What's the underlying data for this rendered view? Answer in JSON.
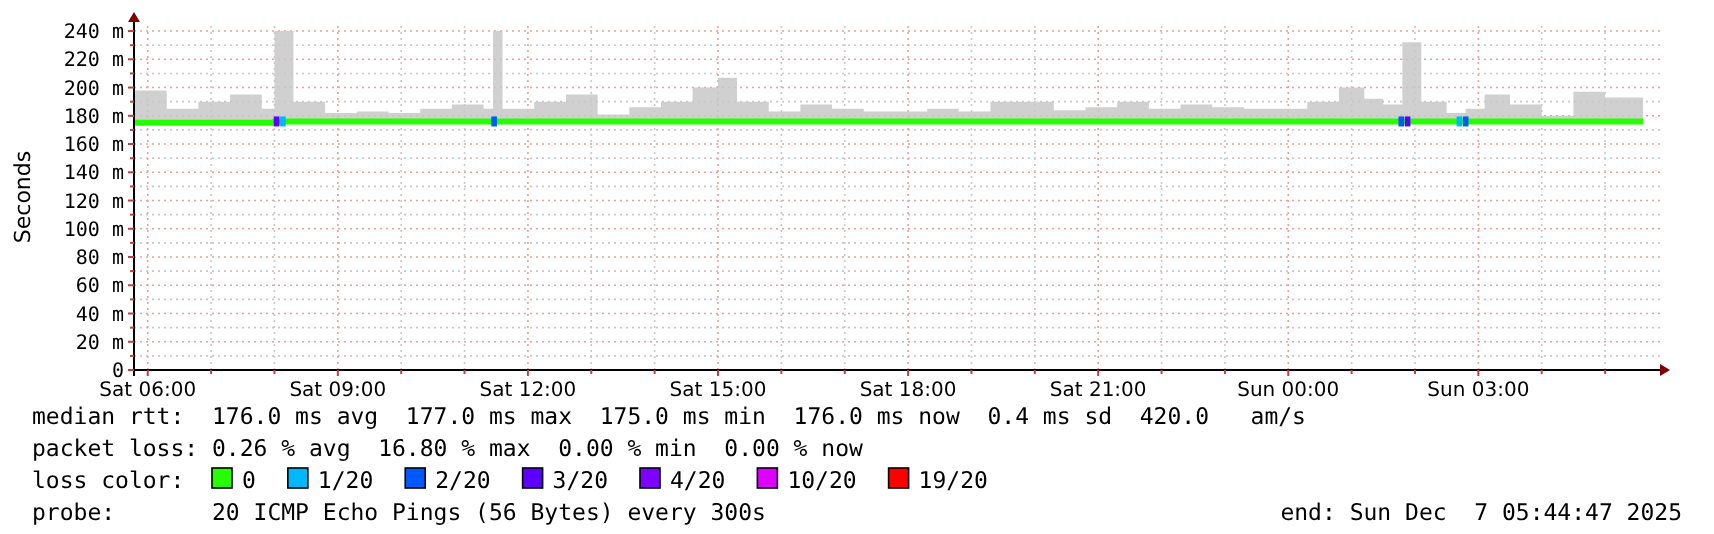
{
  "chart_data": {
    "type": "line",
    "ylabel": "Seconds",
    "legend_title": "loss color:",
    "legend": "bottom",
    "grid": true,
    "annotations": [
      "median rtt:  176.0 ms avg  177.0 ms max  175.0 ms min  176.0 ms now  0.4 ms sd  420.0   am/s",
      "packet loss: 0.26 % avg  16.80 % max  0.00 % min  0.00 % now",
      "probe:       20 ICMP Echo Pings (56 Bytes) every 300s",
      "end: Sun Dec  7 05:44:47 2025"
    ],
    "xlim": [
      "2025-12-06T05:47",
      "2025-12-07T05:52"
    ],
    "xticks": [
      {
        "value": "2025-12-06T06:00",
        "label": "Sat 06:00"
      },
      {
        "value": "2025-12-06T07:00",
        "label": null
      },
      {
        "value": "2025-12-06T08:00",
        "label": null
      },
      {
        "value": "2025-12-06T09:00",
        "label": "Sat 09:00"
      },
      {
        "value": "2025-12-06T10:00",
        "label": null
      },
      {
        "value": "2025-12-06T11:00",
        "label": null
      },
      {
        "value": "2025-12-06T12:00",
        "label": "Sat 12:00"
      },
      {
        "value": "2025-12-06T13:00",
        "label": null
      },
      {
        "value": "2025-12-06T14:00",
        "label": null
      },
      {
        "value": "2025-12-06T15:00",
        "label": "Sat 15:00"
      },
      {
        "value": "2025-12-06T16:00",
        "label": null
      },
      {
        "value": "2025-12-06T17:00",
        "label": null
      },
      {
        "value": "2025-12-06T18:00",
        "label": "Sat 18:00"
      },
      {
        "value": "2025-12-06T19:00",
        "label": null
      },
      {
        "value": "2025-12-06T20:00",
        "label": null
      },
      {
        "value": "2025-12-06T21:00",
        "label": "Sat 21:00"
      },
      {
        "value": "2025-12-06T22:00",
        "label": null
      },
      {
        "value": "2025-12-06T23:00",
        "label": null
      },
      {
        "value": "2025-12-07T00:00",
        "label": "Sun 00:00"
      },
      {
        "value": "2025-12-07T01:00",
        "label": null
      },
      {
        "value": "2025-12-07T02:00",
        "label": null
      },
      {
        "value": "2025-12-07T03:00",
        "label": "Sun 03:00"
      },
      {
        "value": "2025-12-07T04:00",
        "label": null
      },
      {
        "value": "2025-12-07T05:00",
        "label": null
      }
    ],
    "ylim": [
      0,
      245
    ],
    "yticks": [
      0,
      {
        "value": 10,
        "label": null
      },
      {
        "value": 20,
        "label": "20 m"
      },
      {
        "value": 30,
        "label": null
      },
      {
        "value": 40,
        "label": "40 m"
      },
      {
        "value": 50,
        "label": null
      },
      {
        "value": 60,
        "label": "60 m"
      },
      {
        "value": 70,
        "label": null
      },
      {
        "value": 80,
        "label": "80 m"
      },
      {
        "value": 90,
        "label": null
      },
      {
        "value": 100,
        "label": "100 m"
      },
      {
        "value": 110,
        "label": null
      },
      {
        "value": 120,
        "label": "120 m"
      },
      {
        "value": 130,
        "label": null
      },
      {
        "value": 140,
        "label": "140 m"
      },
      {
        "value": 150,
        "label": null
      },
      {
        "value": 160,
        "label": "160 m"
      },
      {
        "value": 170,
        "label": null
      },
      {
        "value": 180,
        "label": "180 m"
      },
      {
        "value": 190,
        "label": null
      },
      {
        "value": 200,
        "label": "200 m"
      },
      {
        "value": 210,
        "label": null
      },
      {
        "value": 220,
        "label": "220 m"
      },
      {
        "value": 230,
        "label": null
      },
      {
        "value": 240,
        "label": "240 m"
      }
    ],
    "series": [
      {
        "name": "0",
        "color": "#26ff00",
        "marker": "none",
        "x": [
          "2025-12-06T05:48",
          "2025-12-06T06:18",
          "2025-12-06T06:48",
          "2025-12-06T07:18",
          "2025-12-06T07:48",
          "2025-12-06T08:00",
          "2025-12-06T08:06",
          "2025-12-06T08:18",
          "2025-12-06T08:48",
          "2025-12-06T09:18",
          "2025-12-06T09:48",
          "2025-12-06T10:18",
          "2025-12-06T10:48",
          "2025-12-06T11:18",
          "2025-12-06T11:27",
          "2025-12-06T11:36",
          "2025-12-06T12:06",
          "2025-12-06T12:36",
          "2025-12-06T13:06",
          "2025-12-06T13:36",
          "2025-12-06T14:06",
          "2025-12-06T14:36",
          "2025-12-06T15:00",
          "2025-12-06T15:18",
          "2025-12-06T15:48",
          "2025-12-06T16:18",
          "2025-12-06T16:48",
          "2025-12-06T17:18",
          "2025-12-06T17:48",
          "2025-12-06T18:18",
          "2025-12-06T18:48",
          "2025-12-06T19:18",
          "2025-12-06T19:48",
          "2025-12-06T20:18",
          "2025-12-06T20:48",
          "2025-12-06T21:18",
          "2025-12-06T21:48",
          "2025-12-06T22:18",
          "2025-12-06T22:48",
          "2025-12-06T23:18",
          "2025-12-06T23:48",
          "2025-12-07T00:18",
          "2025-12-07T00:48",
          "2025-12-07T01:12",
          "2025-12-07T01:30",
          "2025-12-07T01:48",
          "2025-12-07T02:06",
          "2025-12-07T02:30",
          "2025-12-07T02:48",
          "2025-12-07T03:06",
          "2025-12-07T03:30",
          "2025-12-07T04:00",
          "2025-12-07T04:30",
          "2025-12-07T05:00",
          "2025-12-07T05:36"
        ],
        "values": [
          175,
          175,
          175,
          175,
          175,
          176,
          176,
          176,
          176,
          176,
          176,
          176,
          176,
          176,
          176,
          176,
          176,
          176,
          176,
          176,
          176,
          176,
          176,
          176,
          176,
          176,
          176,
          176,
          176,
          176,
          176,
          176,
          176,
          176,
          176,
          176,
          176,
          176,
          176,
          176,
          176,
          176,
          176,
          176,
          176,
          176,
          176,
          176,
          176,
          176,
          176,
          176,
          176,
          176,
          176
        ],
        "lower": [
          175,
          175,
          175,
          175,
          175,
          175,
          175,
          175,
          175,
          175,
          175,
          175,
          175,
          175,
          175,
          175,
          175,
          175,
          175,
          175,
          175,
          175,
          175,
          175,
          175,
          175,
          175,
          175,
          175,
          175,
          175,
          175,
          175,
          175,
          175,
          175,
          175,
          175,
          175,
          175,
          175,
          175,
          175,
          175,
          175,
          175,
          175,
          175,
          175,
          175,
          175,
          175,
          175,
          175,
          175
        ],
        "upper": [
          198,
          185,
          190,
          195,
          185,
          240,
          240,
          190,
          182,
          183,
          182,
          185,
          188,
          185,
          240,
          185,
          190,
          195,
          181,
          186,
          190,
          200,
          207,
          190,
          183,
          188,
          185,
          183,
          183,
          185,
          183,
          190,
          190,
          184,
          186,
          190,
          185,
          188,
          186,
          185,
          185,
          190,
          200,
          192,
          188,
          232,
          190,
          182,
          185,
          195,
          188,
          180,
          197,
          193,
          185
        ]
      },
      {
        "name": "1/20",
        "color": "#00b8ff",
        "type": "scatter",
        "marker": "square",
        "x": [
          "2025-12-06T08:08",
          "2025-12-07T02:42"
        ],
        "values": [
          176,
          176
        ]
      },
      {
        "name": "2/20",
        "color": "#0059ff",
        "type": "scatter",
        "marker": "square",
        "x": [
          "2025-12-06T11:28",
          "2025-12-07T01:47",
          "2025-12-07T02:48"
        ],
        "values": [
          176,
          176,
          176
        ]
      },
      {
        "name": "3/20",
        "color": "#5e00ff",
        "type": "scatter",
        "marker": "square",
        "x": [
          "2025-12-06T08:02",
          "2025-12-07T01:53"
        ],
        "values": [
          176,
          176
        ]
      },
      {
        "name": "4/20",
        "color": "#7e00ff",
        "type": "scatter",
        "marker": "square"
      },
      {
        "name": "10/20",
        "color": "#dd00ff",
        "type": "scatter",
        "marker": "square"
      },
      {
        "name": "19/20",
        "color": "#ff0000",
        "type": "scatter",
        "marker": "square"
      }
    ]
  }
}
